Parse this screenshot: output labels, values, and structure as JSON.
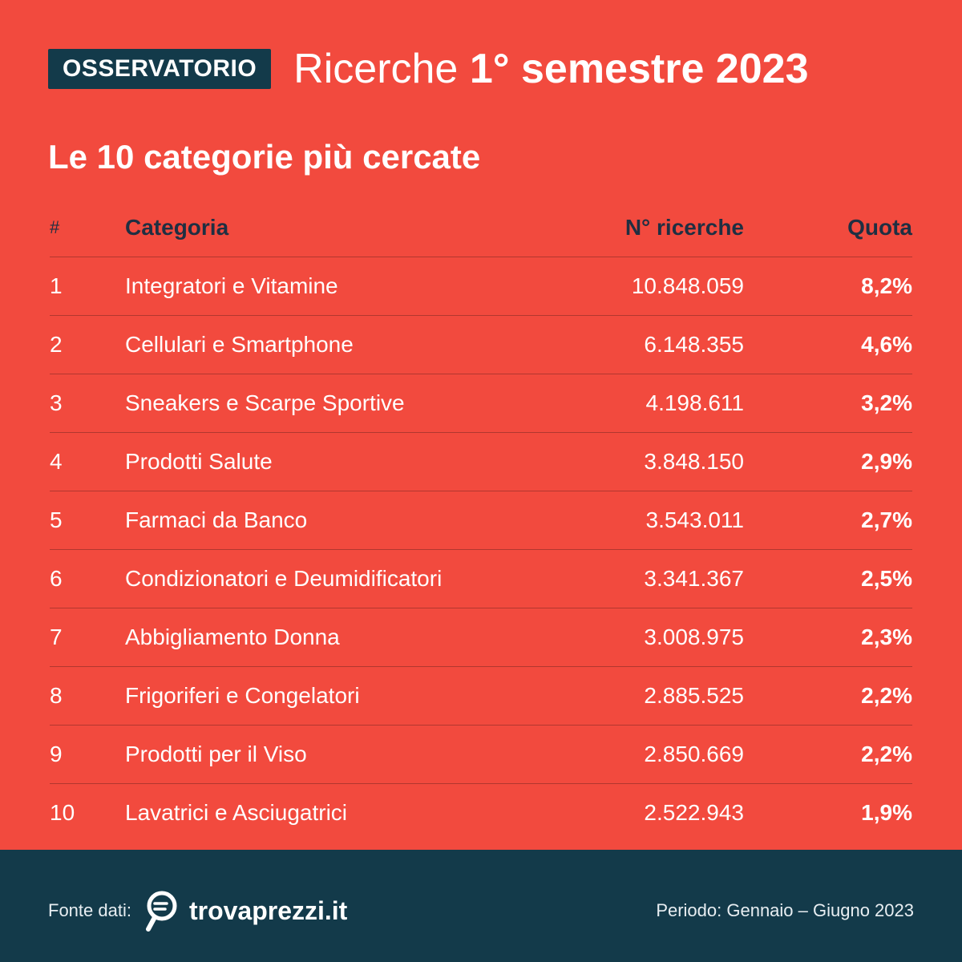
{
  "header": {
    "badge": "OSSERVATORIO",
    "headline_light": "Ricerche",
    "headline_bold": "1° semestre 2023"
  },
  "subtitle": "Le 10 categorie più cercate",
  "table": {
    "headers": {
      "num": "#",
      "category": "Categoria",
      "searches": "N° ricerche",
      "share": "Quota"
    }
  },
  "chart_data": {
    "type": "table",
    "title": "Le 10 categorie più cercate",
    "columns": [
      "#",
      "Categoria",
      "N° ricerche",
      "Quota"
    ],
    "rows": [
      {
        "rank": "1",
        "category": "Integratori e Vitamine",
        "searches": "10.848.059",
        "share": "8,2%"
      },
      {
        "rank": "2",
        "category": "Cellulari e Smartphone",
        "searches": "6.148.355",
        "share": "4,6%"
      },
      {
        "rank": "3",
        "category": "Sneakers e Scarpe Sportive",
        "searches": "4.198.611",
        "share": "3,2%"
      },
      {
        "rank": "4",
        "category": "Prodotti Salute",
        "searches": "3.848.150",
        "share": "2,9%"
      },
      {
        "rank": "5",
        "category": "Farmaci da Banco",
        "searches": "3.543.011",
        "share": "2,7%"
      },
      {
        "rank": "6",
        "category": "Condizionatori e Deumidificatori",
        "searches": "3.341.367",
        "share": "2,5%"
      },
      {
        "rank": "7",
        "category": "Abbigliamento Donna",
        "searches": "3.008.975",
        "share": "2,3%"
      },
      {
        "rank": "8",
        "category": "Frigoriferi e Congelatori",
        "searches": "2.885.525",
        "share": "2,2%"
      },
      {
        "rank": "9",
        "category": "Prodotti per il Viso",
        "searches": "2.850.669",
        "share": "2,2%"
      },
      {
        "rank": "10",
        "category": "Lavatrici e Asciugatrici",
        "searches": "2.522.943",
        "share": "1,9%"
      }
    ]
  },
  "footer": {
    "source_label": "Fonte dati:",
    "logo_icon": "magnifier-euro-icon",
    "brand": "trovaprezzi.it",
    "period": "Periodo: Gennaio – Giugno 2023"
  },
  "colors": {
    "background": "#f24a3e",
    "dark": "#133a4a",
    "header_text": "#1f2f42"
  }
}
